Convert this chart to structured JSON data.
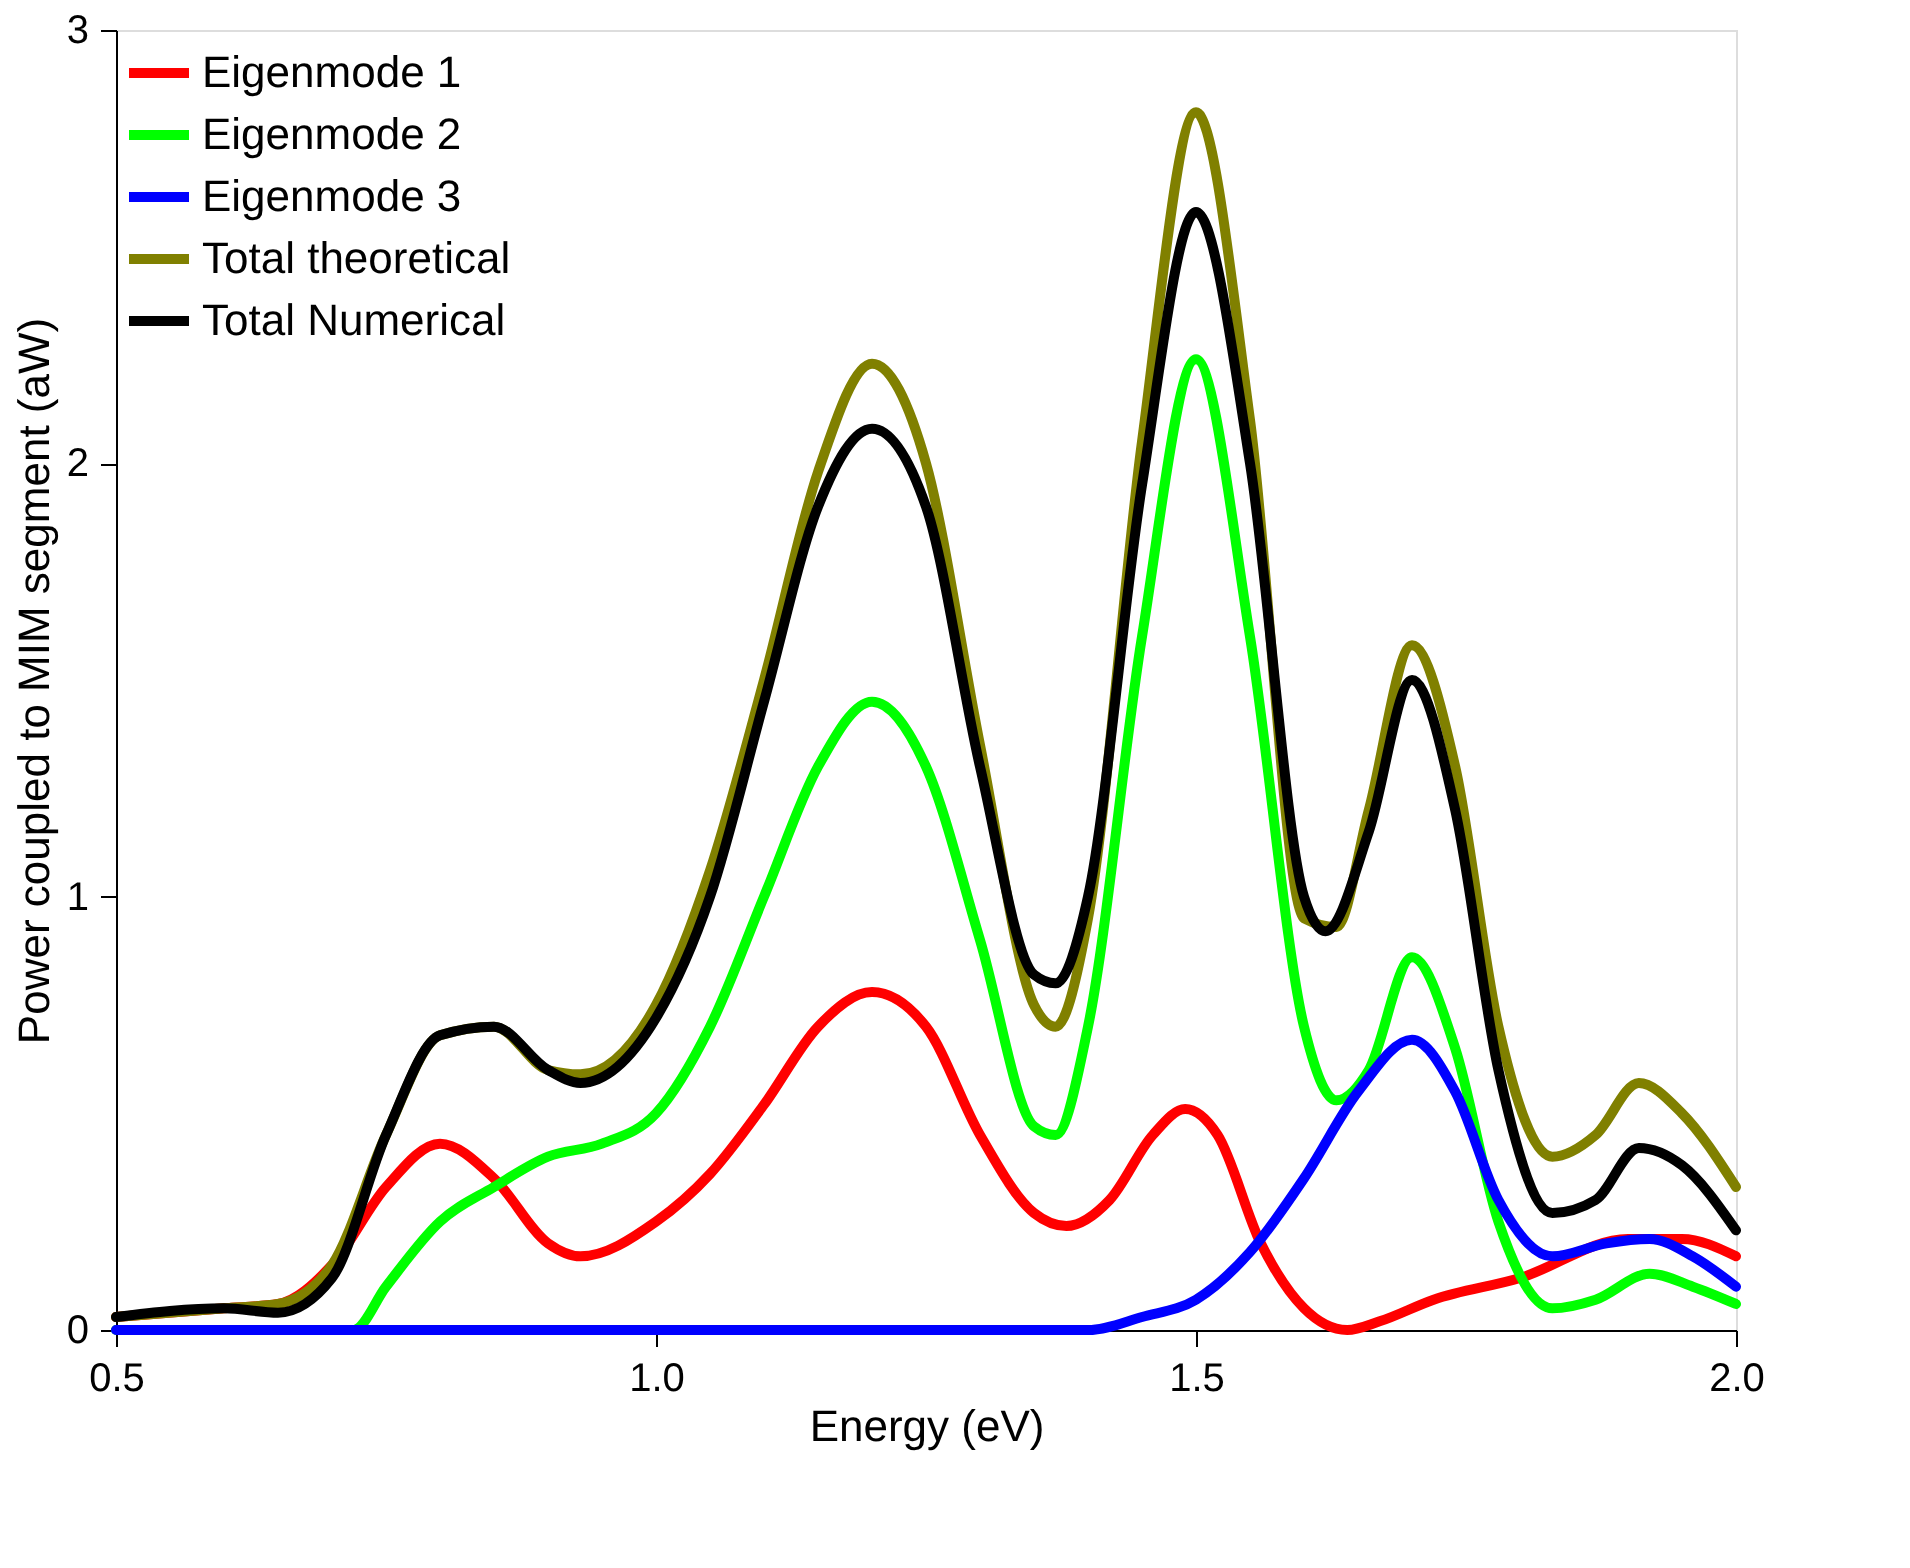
{
  "chart_data": {
    "type": "line",
    "xlabel": "Energy (eV)",
    "ylabel": "Power coupled to MIM segment (aW)",
    "xlim": [
      0.5,
      2.0
    ],
    "xticks": [
      0.5,
      {
        "value": 1.0,
        "label": "1.0"
      },
      1.5,
      {
        "value": 2.0,
        "label": "2.0"
      }
    ],
    "ylim": [
      0,
      3
    ],
    "yticks": [
      0,
      1,
      2,
      3
    ],
    "grid": false,
    "legend": "top left",
    "marker": "none",
    "line_style": "solid",
    "series": [
      {
        "name": "Eigenmode 1",
        "color": "#ff0000",
        "x": [
          0.5,
          0.6,
          0.65,
          0.7,
          0.75,
          0.8,
          0.85,
          0.9,
          0.93,
          1.0,
          1.05,
          1.1,
          1.15,
          1.2,
          1.25,
          1.3,
          1.35,
          1.38,
          1.42,
          1.46,
          1.49,
          1.52,
          1.56,
          1.6,
          1.64,
          1.67,
          1.72,
          1.8,
          1.9,
          1.95,
          2.0
        ],
        "values": [
          0.03,
          0.05,
          0.06,
          0.15,
          0.33,
          0.43,
          0.35,
          0.2,
          0.17,
          0.25,
          0.36,
          0.52,
          0.7,
          0.78,
          0.7,
          0.45,
          0.27,
          0.24,
          0.3,
          0.45,
          0.51,
          0.45,
          0.2,
          0.05,
          0.0,
          0.02,
          0.07,
          0.12,
          0.21,
          0.21,
          0.17
        ]
      },
      {
        "name": "Eigenmode 2",
        "color": "#00ff00",
        "x": [
          0.5,
          0.72,
          0.75,
          0.8,
          0.85,
          0.9,
          0.95,
          1.0,
          1.05,
          1.1,
          1.15,
          1.2,
          1.25,
          1.3,
          1.35,
          1.37,
          1.4,
          1.45,
          1.5,
          1.55,
          1.6,
          1.63,
          1.66,
          1.7,
          1.74,
          1.78,
          1.83,
          1.87,
          1.92,
          1.96,
          2.0
        ],
        "values": [
          0,
          0,
          0.1,
          0.25,
          0.33,
          0.4,
          0.43,
          0.5,
          0.7,
          1.0,
          1.3,
          1.45,
          1.3,
          0.9,
          0.47,
          0.45,
          0.7,
          1.6,
          2.24,
          1.6,
          0.7,
          0.53,
          0.6,
          0.86,
          0.65,
          0.25,
          0.05,
          0.07,
          0.13,
          0.1,
          0.06
        ]
      },
      {
        "name": "Eigenmode 3",
        "color": "#0000ff",
        "x": [
          0.5,
          1.4,
          1.45,
          1.5,
          1.55,
          1.6,
          1.65,
          1.7,
          1.74,
          1.78,
          1.83,
          1.88,
          1.92,
          1.96,
          2.0
        ],
        "values": [
          0,
          0,
          0.03,
          0.07,
          0.18,
          0.35,
          0.55,
          0.67,
          0.55,
          0.3,
          0.17,
          0.2,
          0.21,
          0.17,
          0.1
        ]
      },
      {
        "name": "Total theoretical",
        "color": "#808000",
        "x": [
          0.5,
          0.6,
          0.65,
          0.7,
          0.75,
          0.8,
          0.85,
          0.9,
          0.93,
          1.0,
          1.05,
          1.1,
          1.15,
          1.2,
          1.25,
          1.3,
          1.35,
          1.37,
          1.4,
          1.45,
          1.5,
          1.55,
          1.6,
          1.63,
          1.66,
          1.7,
          1.74,
          1.78,
          1.83,
          1.87,
          1.91,
          1.95,
          2.0
        ],
        "values": [
          0.03,
          0.05,
          0.06,
          0.15,
          0.45,
          0.68,
          0.7,
          0.6,
          0.59,
          0.75,
          1.06,
          1.5,
          1.98,
          2.23,
          2.0,
          1.35,
          0.75,
          0.7,
          0.95,
          2.05,
          2.81,
          2.1,
          0.95,
          0.93,
          1.2,
          1.58,
          1.3,
          0.7,
          0.4,
          0.45,
          0.57,
          0.5,
          0.33
        ]
      },
      {
        "name": "Total Numerical",
        "color": "#000000",
        "x": [
          0.5,
          0.6,
          0.65,
          0.7,
          0.75,
          0.8,
          0.85,
          0.9,
          0.93,
          1.0,
          1.05,
          1.1,
          1.15,
          1.2,
          1.25,
          1.3,
          1.35,
          1.37,
          1.4,
          1.45,
          1.5,
          1.55,
          1.6,
          1.62,
          1.66,
          1.7,
          1.74,
          1.78,
          1.83,
          1.87,
          1.91,
          1.95,
          2.0
        ],
        "values": [
          0.03,
          0.05,
          0.04,
          0.12,
          0.45,
          0.68,
          0.7,
          0.6,
          0.57,
          0.72,
          1.0,
          1.45,
          1.9,
          2.08,
          1.9,
          1.3,
          0.82,
          0.8,
          1.0,
          1.95,
          2.58,
          2.0,
          1.0,
          0.92,
          1.15,
          1.5,
          1.2,
          0.6,
          0.27,
          0.3,
          0.42,
          0.38,
          0.23
        ]
      }
    ]
  }
}
